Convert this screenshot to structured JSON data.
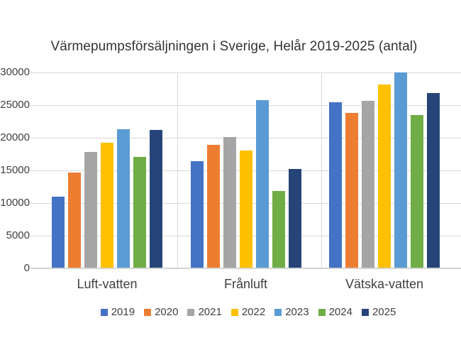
{
  "chart_data": {
    "type": "bar",
    "title": "Värmepumpsförsäljningen i Sverige, Helår 2019-2025 (antal)",
    "categories": [
      "Luft-vatten",
      "Frånluft",
      "Vätska-vatten"
    ],
    "series": [
      {
        "name": "2019",
        "color": "#4472C4",
        "values": [
          11000,
          16400,
          25400
        ]
      },
      {
        "name": "2020",
        "color": "#ED7D31",
        "values": [
          14700,
          18900,
          23800
        ]
      },
      {
        "name": "2021",
        "color": "#A5A5A5",
        "values": [
          17800,
          20100,
          25600
        ]
      },
      {
        "name": "2022",
        "color": "#FFC000",
        "values": [
          19200,
          18000,
          28100
        ]
      },
      {
        "name": "2023",
        "color": "#5B9BD5",
        "values": [
          21300,
          25800,
          30000
        ]
      },
      {
        "name": "2024",
        "color": "#70AD47",
        "values": [
          17100,
          11800,
          23500
        ]
      },
      {
        "name": "2025",
        "color": "#264478",
        "values": [
          21200,
          15200,
          26800
        ]
      }
    ],
    "ylim": [
      0,
      30000
    ],
    "yticks": [
      0,
      5000,
      10000,
      15000,
      20000,
      25000,
      30000
    ],
    "grid": {
      "horizontal": true,
      "vertical_category_boundaries": true
    },
    "legend_position": "bottom",
    "background_color": "#FFFFFF",
    "gridline_color": "#D9D9D9",
    "text_color": "#404040"
  }
}
